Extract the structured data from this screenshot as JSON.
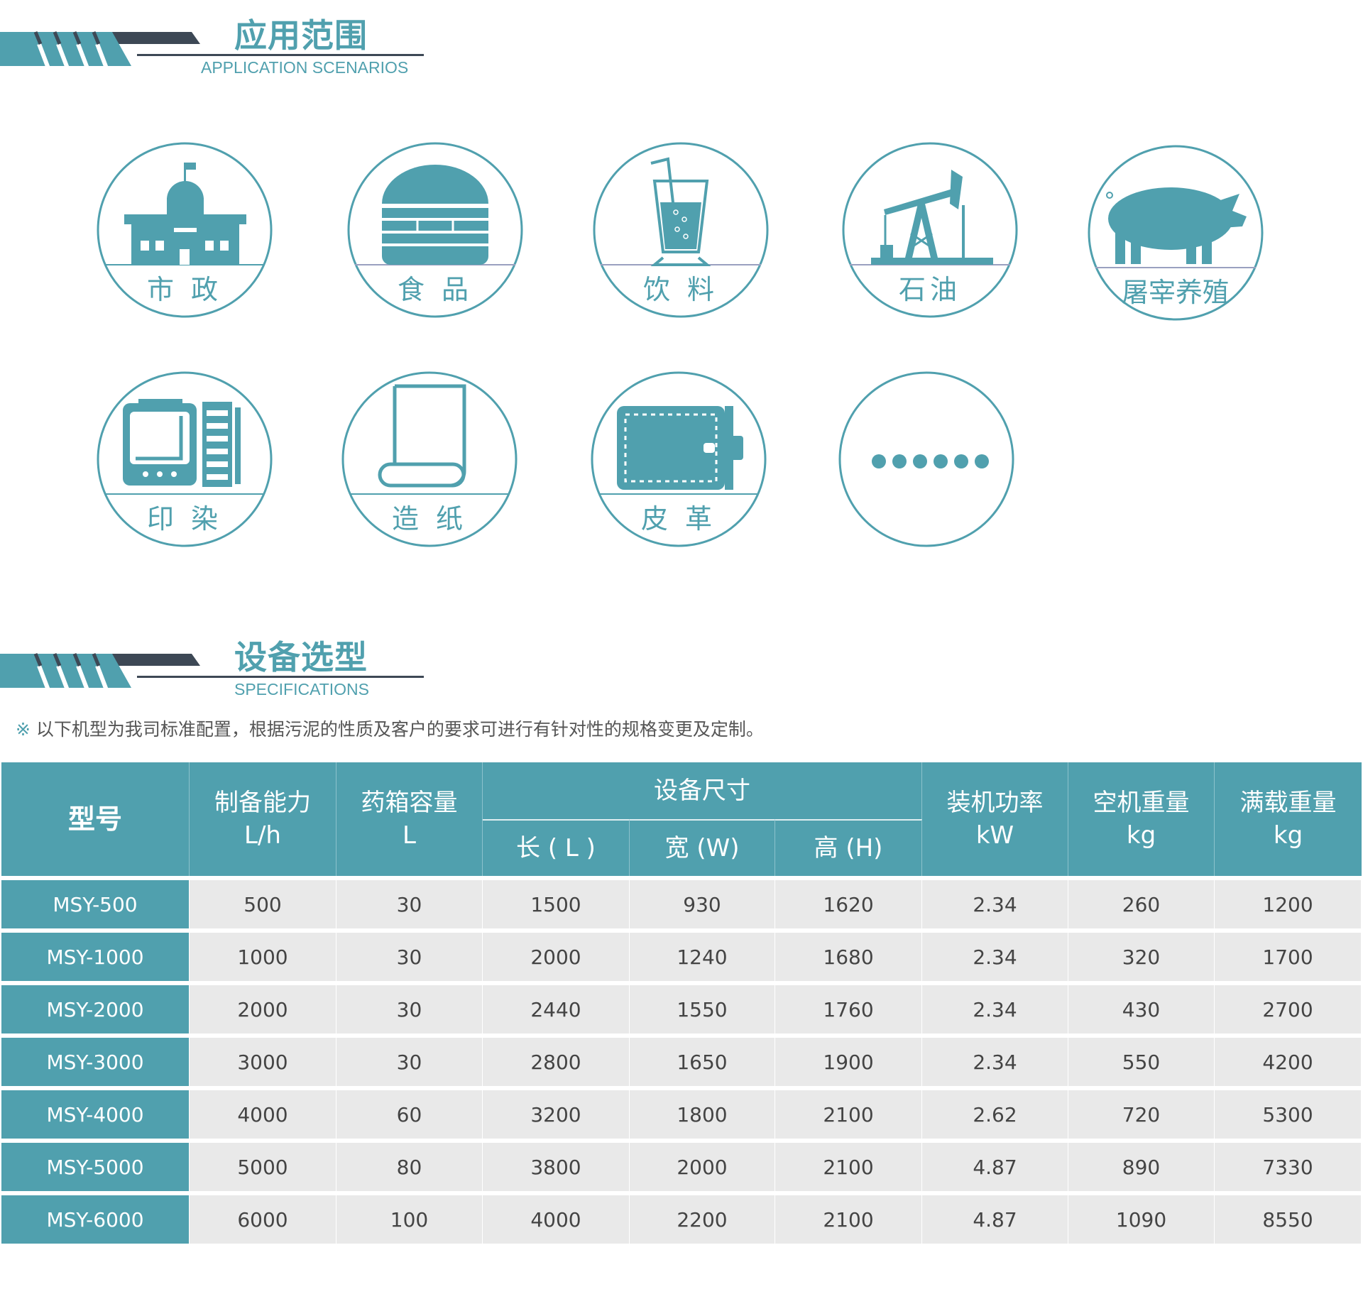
{
  "colors": {
    "accent": "#50a0ae",
    "dark": "#3d4855",
    "row_bg": "#e9e9e9"
  },
  "section1": {
    "title": "应用范围",
    "subtitle": "APPLICATION SCENARIOS"
  },
  "applications": [
    {
      "label": "市 政",
      "icon": "city-hall-icon"
    },
    {
      "label": "食 品",
      "icon": "burger-icon"
    },
    {
      "label": "饮 料",
      "icon": "drink-icon"
    },
    {
      "label": "石油",
      "icon": "oil-pump-icon"
    },
    {
      "label": "屠宰养殖",
      "icon": "pig-icon"
    },
    {
      "label": "印 染",
      "icon": "printing-machine-icon"
    },
    {
      "label": "造 纸",
      "icon": "paper-roll-icon"
    },
    {
      "label": "皮 革",
      "icon": "wallet-icon"
    },
    {
      "label": "",
      "icon": "more-dots-icon"
    }
  ],
  "section2": {
    "title": "设备选型",
    "subtitle": "SPECIFICATIONS"
  },
  "note": {
    "mark": "※",
    "text": " 以下机型为我司标准配置，根据污泥的性质及客户的要求可进行有针对性的规格变更及定制。"
  },
  "table": {
    "headers": {
      "model": "型号",
      "capacity": "制备能力",
      "capacity_unit": "L/h",
      "tank": "药箱容量",
      "tank_unit": "L",
      "size": "设备尺寸",
      "length": "长 ( L )",
      "width": "宽 (W)",
      "height": "高 (H)",
      "power": "装机功率",
      "power_unit": "kW",
      "empty_weight": "空机重量",
      "empty_unit": "kg",
      "full_weight": "满载重量",
      "full_unit": "kg"
    },
    "rows": [
      [
        "MSY-500",
        "500",
        "30",
        "1500",
        "930",
        "1620",
        "2.34",
        "260",
        "1200"
      ],
      [
        "MSY-1000",
        "1000",
        "30",
        "2000",
        "1240",
        "1680",
        "2.34",
        "320",
        "1700"
      ],
      [
        "MSY-2000",
        "2000",
        "30",
        "2440",
        "1550",
        "1760",
        "2.34",
        "430",
        "2700"
      ],
      [
        "MSY-3000",
        "3000",
        "30",
        "2800",
        "1650",
        "1900",
        "2.34",
        "550",
        "4200"
      ],
      [
        "MSY-4000",
        "4000",
        "60",
        "3200",
        "1800",
        "2100",
        "2.62",
        "720",
        "5300"
      ],
      [
        "MSY-5000",
        "5000",
        "80",
        "3800",
        "2000",
        "2100",
        "4.87",
        "890",
        "7330"
      ],
      [
        "MSY-6000",
        "6000",
        "100",
        "4000",
        "2200",
        "2100",
        "4.87",
        "1090",
        "8550"
      ]
    ]
  }
}
